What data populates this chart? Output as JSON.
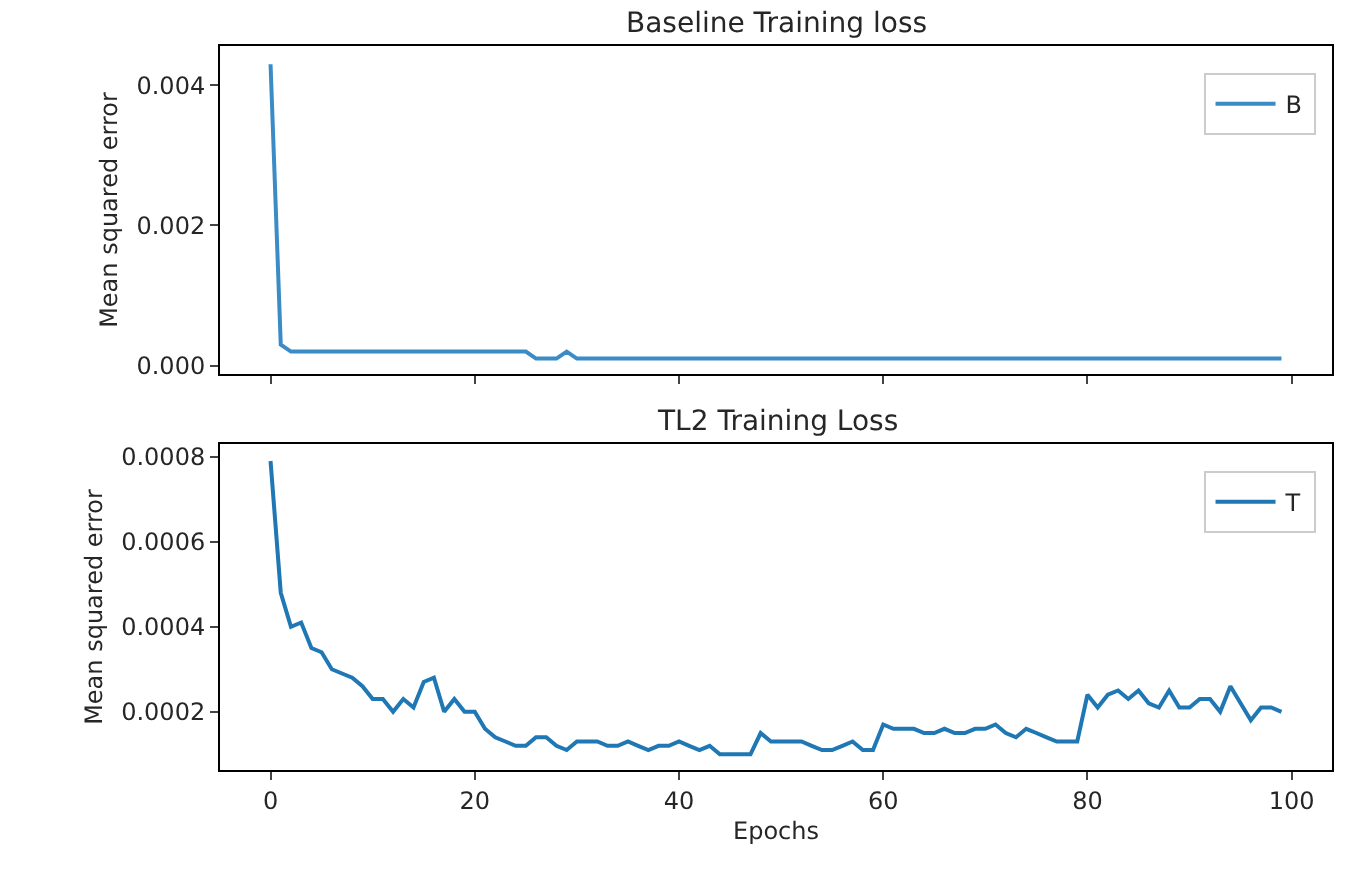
{
  "chart_data": [
    {
      "type": "line",
      "title": "Baseline Training loss",
      "ylabel": "Mean squared error",
      "tick_labels": "y",
      "legend": "top right",
      "line_style": "solid",
      "x": [
        0,
        1,
        2,
        3,
        4,
        5,
        6,
        7,
        8,
        9,
        10,
        11,
        12,
        13,
        14,
        15,
        16,
        17,
        18,
        19,
        20,
        21,
        22,
        23,
        24,
        25,
        26,
        27,
        28,
        29,
        30,
        31,
        32,
        33,
        34,
        35,
        36,
        37,
        38,
        39,
        40,
        41,
        42,
        43,
        44,
        45,
        46,
        47,
        48,
        49,
        50,
        51,
        52,
        53,
        54,
        55,
        56,
        57,
        58,
        59,
        60,
        61,
        62,
        63,
        64,
        65,
        66,
        67,
        68,
        69,
        70,
        71,
        72,
        73,
        74,
        75,
        76,
        77,
        78,
        79,
        80,
        81,
        82,
        83,
        84,
        85,
        86,
        87,
        88,
        89,
        90,
        91,
        92,
        93,
        94,
        95,
        96,
        97,
        98,
        99
      ],
      "xlim": [
        -4.95,
        103.95
      ],
      "xticks": [
        0,
        20,
        40,
        60,
        80,
        100
      ],
      "ylim": [
        -0.00012,
        0.00456
      ],
      "yticks": [
        {
          "value": 0,
          "label": "0.000"
        },
        {
          "value": 0.002,
          "label": "0.002"
        },
        {
          "value": 0.004,
          "label": "0.004"
        }
      ],
      "series": [
        {
          "name": "B",
          "color": "#3b8bc6",
          "values": [
            0.0043,
            0.0003,
            0.0002,
            0.0002,
            0.0002,
            0.0002,
            0.0002,
            0.0002,
            0.0002,
            0.0002,
            0.0002,
            0.0002,
            0.0002,
            0.0002,
            0.0002,
            0.0002,
            0.0002,
            0.0002,
            0.0002,
            0.0002,
            0.0002,
            0.0002,
            0.0002,
            0.0002,
            0.0002,
            0.0002,
            0.0001,
            0.0001,
            0.0001,
            0.0002,
            0.0001,
            0.0001,
            0.0001,
            0.0001,
            0.0001,
            0.0001,
            0.0001,
            0.0001,
            0.0001,
            0.0001,
            0.0001,
            0.0001,
            0.0001,
            0.0001,
            0.0001,
            0.0001,
            0.0001,
            0.0001,
            0.0001,
            0.0001,
            0.0001,
            0.0001,
            0.0001,
            0.0001,
            0.0001,
            0.0001,
            0.0001,
            0.0001,
            0.0001,
            0.0001,
            0.0001,
            0.0001,
            0.0001,
            0.0001,
            0.0001,
            0.0001,
            0.0001,
            0.0001,
            0.0001,
            0.0001,
            0.0001,
            0.0001,
            0.0001,
            0.0001,
            0.0001,
            0.0001,
            0.0001,
            0.0001,
            0.0001,
            0.0001,
            0.0001,
            0.0001,
            0.0001,
            0.0001,
            0.0001,
            0.0001,
            0.0001,
            0.0001,
            0.0001,
            0.0001,
            0.0001,
            0.0001,
            0.0001,
            0.0001,
            0.0001,
            0.0001,
            0.0001,
            0.0001,
            0.0001,
            0.0001
          ]
        }
      ]
    },
    {
      "type": "line",
      "title": "TL2 Training Loss",
      "xlabel": "Epochs",
      "ylabel": "Mean squared error",
      "legend": "top right",
      "line_style": "solid",
      "x": [
        0,
        1,
        2,
        3,
        4,
        5,
        6,
        7,
        8,
        9,
        10,
        11,
        12,
        13,
        14,
        15,
        16,
        17,
        18,
        19,
        20,
        21,
        22,
        23,
        24,
        25,
        26,
        27,
        28,
        29,
        30,
        31,
        32,
        33,
        34,
        35,
        36,
        37,
        38,
        39,
        40,
        41,
        42,
        43,
        44,
        45,
        46,
        47,
        48,
        49,
        50,
        51,
        52,
        53,
        54,
        55,
        56,
        57,
        58,
        59,
        60,
        61,
        62,
        63,
        64,
        65,
        66,
        67,
        68,
        69,
        70,
        71,
        72,
        73,
        74,
        75,
        76,
        77,
        78,
        79,
        80,
        81,
        82,
        83,
        84,
        85,
        86,
        87,
        88,
        89,
        90,
        91,
        92,
        93,
        94,
        95,
        96,
        97,
        98,
        99
      ],
      "xlim": [
        -4.95,
        103.95
      ],
      "xticks": [
        0,
        20,
        40,
        60,
        80,
        100
      ],
      "ylim": [
        6.3e-05,
        0.00083
      ],
      "yticks": [
        0.0002,
        0.0004,
        0.0006,
        0.0008
      ],
      "series": [
        {
          "name": "T",
          "color": "#1f77b4",
          "values": [
            0.00079,
            0.00048,
            0.0004,
            0.00041,
            0.00035,
            0.00034,
            0.0003,
            0.00029,
            0.00028,
            0.00026,
            0.00023,
            0.00023,
            0.0002,
            0.00023,
            0.00021,
            0.00027,
            0.00028,
            0.0002,
            0.00023,
            0.0002,
            0.0002,
            0.00016,
            0.00014,
            0.00013,
            0.00012,
            0.00012,
            0.00014,
            0.00014,
            0.00012,
            0.00011,
            0.00013,
            0.00013,
            0.00013,
            0.00012,
            0.00012,
            0.00013,
            0.00012,
            0.00011,
            0.00012,
            0.00012,
            0.00013,
            0.00012,
            0.00011,
            0.00012,
            0.0001,
            0.0001,
            0.0001,
            0.0001,
            0.00015,
            0.00013,
            0.00013,
            0.00013,
            0.00013,
            0.00012,
            0.00011,
            0.00011,
            0.00012,
            0.00013,
            0.00011,
            0.00011,
            0.00017,
            0.00016,
            0.00016,
            0.00016,
            0.00015,
            0.00015,
            0.00016,
            0.00015,
            0.00015,
            0.00016,
            0.00016,
            0.00017,
            0.00015,
            0.00014,
            0.00016,
            0.00015,
            0.00014,
            0.00013,
            0.00013,
            0.00013,
            0.00024,
            0.00021,
            0.00024,
            0.00025,
            0.00023,
            0.00025,
            0.00022,
            0.00021,
            0.00025,
            0.00021,
            0.00021,
            0.00023,
            0.00023,
            0.0002,
            0.00026,
            0.00022,
            0.00018,
            0.00021,
            0.00021,
            0.0002
          ]
        }
      ]
    }
  ]
}
